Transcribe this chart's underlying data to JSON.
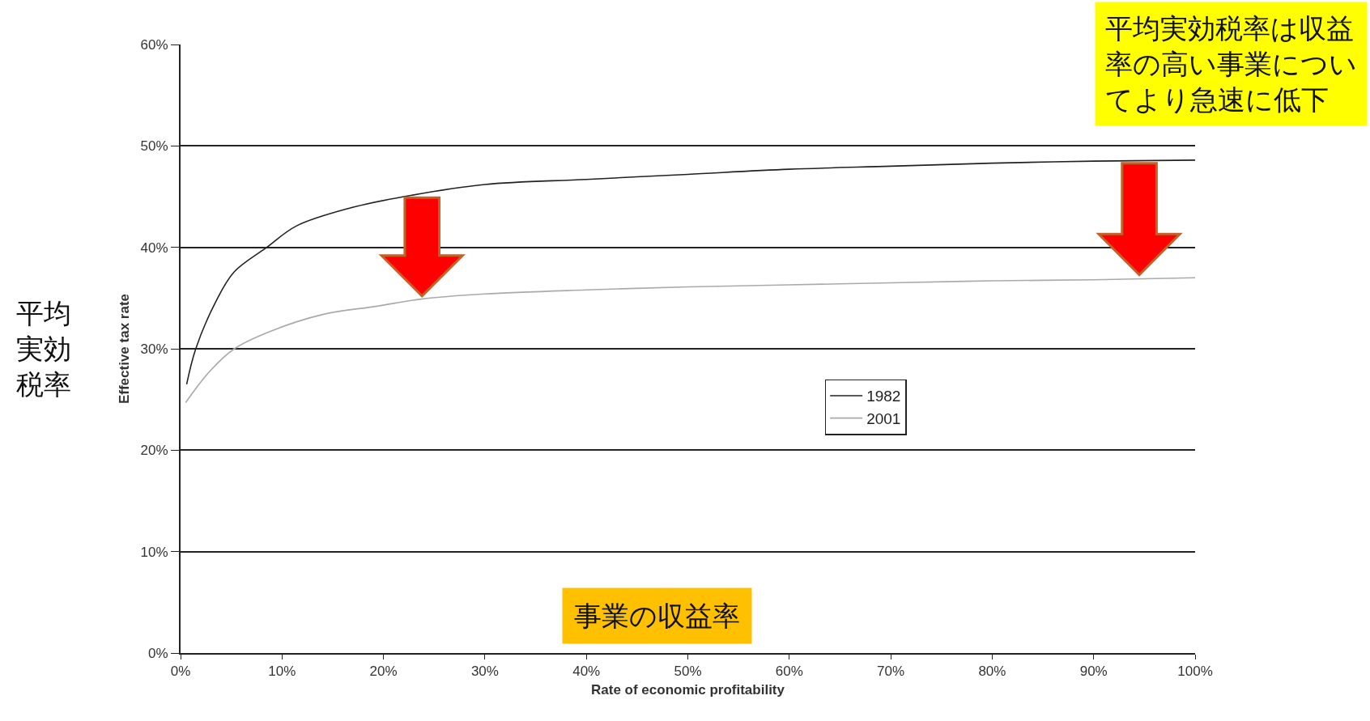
{
  "chart_data": {
    "type": "line",
    "xlabel": "Rate of economic profitability",
    "ylabel": "Effective tax rate",
    "annotations": [
      "平均実効税率は収益率の高い事業についてより急速に低下",
      "事業の収益率",
      "平均実効税率"
    ],
    "series": [
      {
        "name": "1982",
        "color": "#222222",
        "x": [
          0.6,
          1.5,
          3.5,
          5.3,
          8.5,
          11.4,
          16.8,
          22,
          30,
          40,
          50,
          60,
          70,
          80,
          90,
          100
        ],
        "values": [
          26.5,
          30,
          34.7,
          37.6,
          40,
          42.1,
          43.9,
          45.0,
          46.2,
          46.7,
          47.2,
          47.7,
          48.0,
          48.3,
          48.5,
          48.6
        ]
      },
      {
        "name": "2001",
        "color": "#aaaaaa",
        "x": [
          0.5,
          2.9,
          5.3,
          8.8,
          14.1,
          19.4,
          23.7,
          30,
          40,
          50,
          60,
          70,
          80,
          90,
          100
        ],
        "values": [
          24.7,
          27.8,
          30,
          31.7,
          33.4,
          34.2,
          34.9,
          35.4,
          35.8,
          36.1,
          36.3,
          36.5,
          36.7,
          36.8,
          37.0
        ]
      }
    ],
    "xlim": [
      0,
      100
    ],
    "xticks": [
      {
        "value": 0,
        "label": "0%"
      },
      {
        "value": 10,
        "label": "10%"
      },
      {
        "value": 20,
        "label": "20%"
      },
      {
        "value": 30,
        "label": "30%"
      },
      {
        "value": 40,
        "label": "40%"
      },
      {
        "value": 50,
        "label": "50%"
      },
      {
        "value": 60,
        "label": "60%"
      },
      {
        "value": 70,
        "label": "70%"
      },
      {
        "value": 80,
        "label": "80%"
      },
      {
        "value": 90,
        "label": "90%"
      },
      {
        "value": 100,
        "label": "100%"
      }
    ],
    "ylim": [
      0,
      60
    ],
    "yticks": [
      {
        "value": 0,
        "label": "0%"
      },
      {
        "value": 10,
        "label": "10%"
      },
      {
        "value": 20,
        "label": "20%"
      },
      {
        "value": 30,
        "label": "30%"
      },
      {
        "value": 40,
        "label": "40%"
      },
      {
        "value": 50,
        "label": "50%"
      },
      {
        "value": 60,
        "label": "60%"
      }
    ],
    "grid": "y",
    "legend": "right",
    "marker": "none",
    "line_style": "solid"
  }
}
